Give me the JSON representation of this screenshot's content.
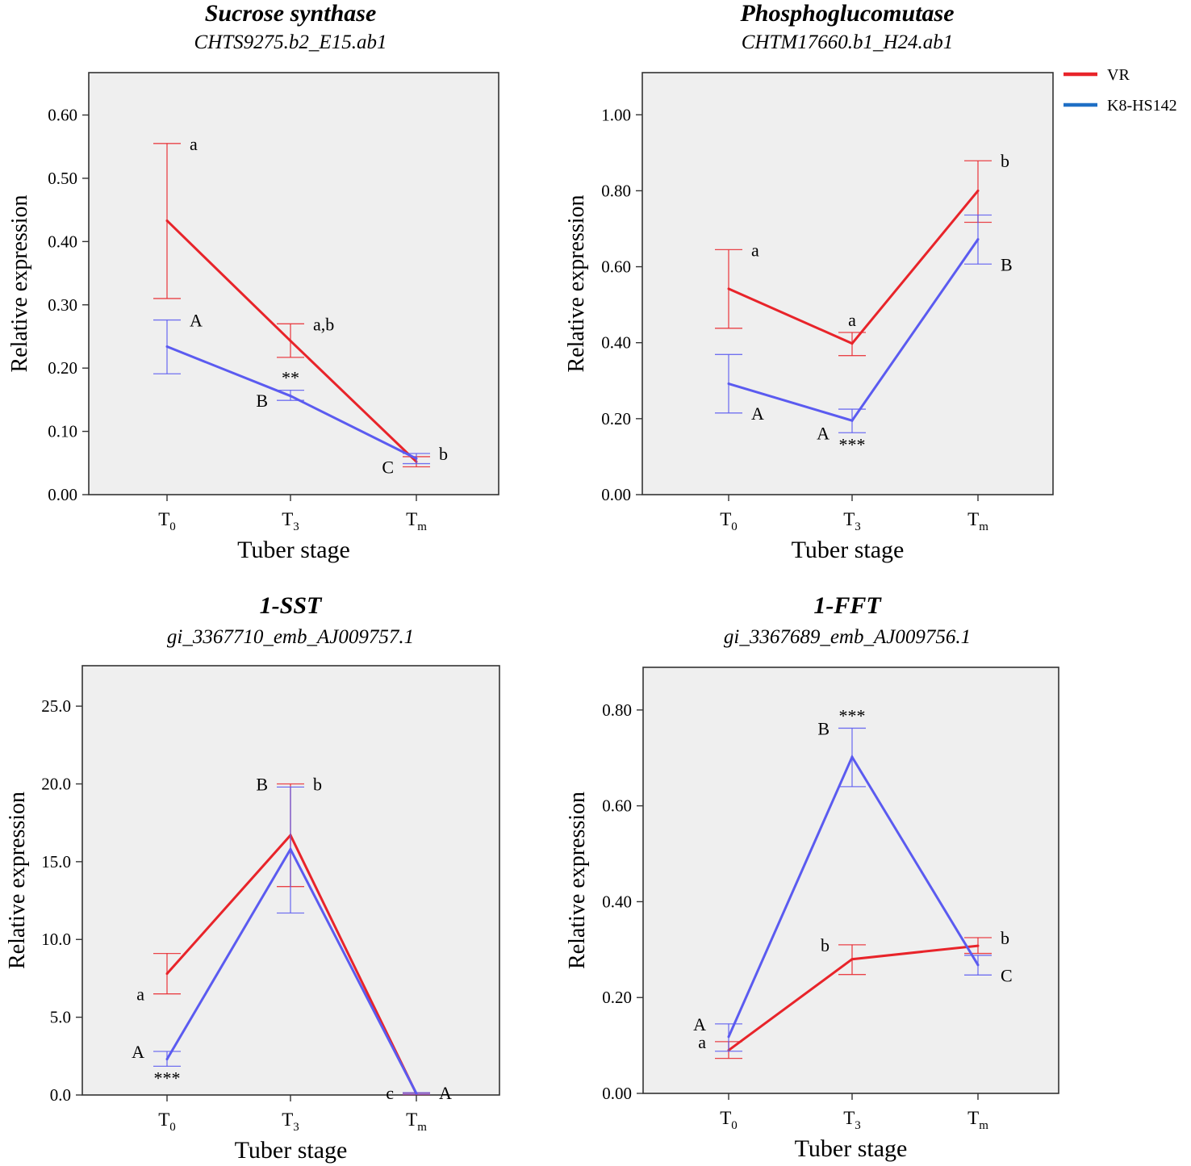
{
  "legend": [
    {
      "name": "VR",
      "color": "#e8242a"
    },
    {
      "name": "K8-HS142",
      "color": "#1f6fc5"
    }
  ],
  "chart_data": [
    {
      "type": "line",
      "title": "Sucrose synthase",
      "subtitle": "CHTS9275.b2_E15.ab1",
      "xlabel": "Tuber stage",
      "ylabel": "Relative expression",
      "categories": [
        {
          "base": "T",
          "sub": "0"
        },
        {
          "base": "T",
          "sub": "3"
        },
        {
          "base": "T",
          "sub": "m"
        }
      ],
      "ylim": [
        0,
        0.667
      ],
      "yticks": [
        0,
        0.1,
        0.2,
        0.3,
        0.4,
        0.5,
        0.6
      ],
      "ytick_labels": [
        "0.00",
        "0.10",
        "0.20",
        "0.30",
        "0.40",
        "0.50",
        "0.60"
      ],
      "series": [
        {
          "name": "VR",
          "color": "#e8242a",
          "values": [
            0.433,
            0.243,
            0.052
          ],
          "err_low": [
            0.31,
            0.217,
            0.044
          ],
          "err_high": [
            0.555,
            0.27,
            0.06
          ]
        },
        {
          "name": "K8-HS142",
          "color": "#5b5bf0",
          "values": [
            0.234,
            0.156,
            0.057
          ],
          "err_low": [
            0.191,
            0.149,
            0.049
          ],
          "err_high": [
            0.276,
            0.165,
            0.065
          ]
        }
      ],
      "annotations": [
        {
          "text": "a",
          "cat": 0,
          "y": 0.555,
          "pos": "right"
        },
        {
          "text": "A",
          "cat": 0,
          "y": 0.276,
          "pos": "right"
        },
        {
          "text": "a,b",
          "cat": 1,
          "y": 0.27,
          "pos": "right"
        },
        {
          "text": "**",
          "cat": 1,
          "y": 0.165,
          "pos": "above"
        },
        {
          "text": "B",
          "cat": 1,
          "y": 0.149,
          "pos": "left"
        },
        {
          "text": "b",
          "cat": 2,
          "y": 0.065,
          "pos": "right"
        },
        {
          "text": "C",
          "cat": 2,
          "y": 0.044,
          "pos": "left"
        }
      ]
    },
    {
      "type": "line",
      "title": "Phosphoglucomutase",
      "subtitle": "CHTM17660.b1_H24.ab1",
      "xlabel": "Tuber stage",
      "ylabel": "Relative expression",
      "categories": [
        {
          "base": "T",
          "sub": "0"
        },
        {
          "base": "T",
          "sub": "3"
        },
        {
          "base": "T",
          "sub": "m"
        }
      ],
      "ylim": [
        0,
        1.111
      ],
      "yticks": [
        0,
        0.2,
        0.4,
        0.6,
        0.8,
        1.0
      ],
      "ytick_labels": [
        "0.00",
        "0.20",
        "0.40",
        "0.60",
        "0.80",
        "1.00"
      ],
      "series": [
        {
          "name": "VR",
          "color": "#e8242a",
          "values": [
            0.542,
            0.398,
            0.8
          ],
          "err_low": [
            0.438,
            0.366,
            0.717
          ],
          "err_high": [
            0.645,
            0.427,
            0.879
          ]
        },
        {
          "name": "K8-HS142",
          "color": "#5b5bf0",
          "values": [
            0.292,
            0.195,
            0.672
          ],
          "err_low": [
            0.215,
            0.163,
            0.607
          ],
          "err_high": [
            0.369,
            0.225,
            0.736
          ]
        }
      ],
      "annotations": [
        {
          "text": "a",
          "cat": 0,
          "y": 0.645,
          "pos": "right"
        },
        {
          "text": "A",
          "cat": 0,
          "y": 0.215,
          "pos": "right"
        },
        {
          "text": "a",
          "cat": 1,
          "y": 0.427,
          "pos": "above"
        },
        {
          "text": "A",
          "cat": 1,
          "y": 0.163,
          "pos": "left"
        },
        {
          "text": "***",
          "cat": 1,
          "y": 0.163,
          "pos": "below"
        },
        {
          "text": "b",
          "cat": 2,
          "y": 0.879,
          "pos": "right"
        },
        {
          "text": "B",
          "cat": 2,
          "y": 0.607,
          "pos": "right"
        }
      ]
    },
    {
      "type": "line",
      "title": "1-SST",
      "subtitle": "gi_3367710_emb_AJ009757.1",
      "xlabel": "Tuber stage",
      "ylabel": "Relative expression",
      "categories": [
        {
          "base": "T",
          "sub": "0"
        },
        {
          "base": "T",
          "sub": "3"
        },
        {
          "base": "T",
          "sub": "m"
        }
      ],
      "ylim": [
        0,
        27.6
      ],
      "yticks": [
        0,
        5,
        10,
        15,
        20,
        25
      ],
      "ytick_labels": [
        "0.0",
        "5.0",
        "10.0",
        "15.0",
        "20.0",
        "25.0"
      ],
      "series": [
        {
          "name": "VR",
          "color": "#e8242a",
          "values": [
            7.8,
            16.7,
            0.08
          ],
          "err_low": [
            6.5,
            13.4,
            0.03
          ],
          "err_high": [
            9.1,
            20.0,
            0.13
          ]
        },
        {
          "name": "K8-HS142",
          "color": "#5b5bf0",
          "values": [
            2.3,
            15.8,
            0.1
          ],
          "err_low": [
            1.85,
            11.7,
            0.05
          ],
          "err_high": [
            2.8,
            19.8,
            0.15
          ]
        }
      ],
      "annotations": [
        {
          "text": "a",
          "cat": 0,
          "y": 6.5,
          "pos": "left"
        },
        {
          "text": "A",
          "cat": 0,
          "y": 2.8,
          "pos": "left"
        },
        {
          "text": "***",
          "cat": 0,
          "y": 1.85,
          "pos": "below"
        },
        {
          "text": "B",
          "cat": 1,
          "y": 20.0,
          "pos": "left"
        },
        {
          "text": "b",
          "cat": 1,
          "y": 20.0,
          "pos": "right"
        },
        {
          "text": "c",
          "cat": 2,
          "y": 0.15,
          "pos": "left"
        },
        {
          "text": "A",
          "cat": 2,
          "y": 0.15,
          "pos": "right"
        }
      ]
    },
    {
      "type": "line",
      "title": "1-FFT",
      "subtitle": "gi_3367689_emb_AJ009756.1",
      "xlabel": "Tuber stage",
      "ylabel": "Relative expression",
      "categories": [
        {
          "base": "T",
          "sub": "0"
        },
        {
          "base": "T",
          "sub": "3"
        },
        {
          "base": "T",
          "sub": "m"
        }
      ],
      "ylim": [
        0,
        0.889
      ],
      "yticks": [
        0,
        0.2,
        0.4,
        0.6,
        0.8
      ],
      "ytick_labels": [
        "0.00",
        "0.20",
        "0.40",
        "0.60",
        "0.80"
      ],
      "series": [
        {
          "name": "VR",
          "color": "#e8242a",
          "values": [
            0.09,
            0.28,
            0.308
          ],
          "err_low": [
            0.073,
            0.248,
            0.292
          ],
          "err_high": [
            0.108,
            0.31,
            0.325
          ]
        },
        {
          "name": "K8-HS142",
          "color": "#5b5bf0",
          "values": [
            0.118,
            0.702,
            0.268
          ],
          "err_low": [
            0.088,
            0.64,
            0.247
          ],
          "err_high": [
            0.145,
            0.762,
            0.288
          ]
        }
      ],
      "annotations": [
        {
          "text": "A",
          "cat": 0,
          "y": 0.145,
          "pos": "left"
        },
        {
          "text": "a",
          "cat": 0,
          "y": 0.108,
          "pos": "left"
        },
        {
          "text": "B",
          "cat": 1,
          "y": 0.762,
          "pos": "left"
        },
        {
          "text": "***",
          "cat": 1,
          "y": 0.762,
          "pos": "above"
        },
        {
          "text": "b",
          "cat": 1,
          "y": 0.31,
          "pos": "left"
        },
        {
          "text": "b",
          "cat": 2,
          "y": 0.325,
          "pos": "right"
        },
        {
          "text": "C",
          "cat": 2,
          "y": 0.247,
          "pos": "right"
        }
      ]
    }
  ]
}
